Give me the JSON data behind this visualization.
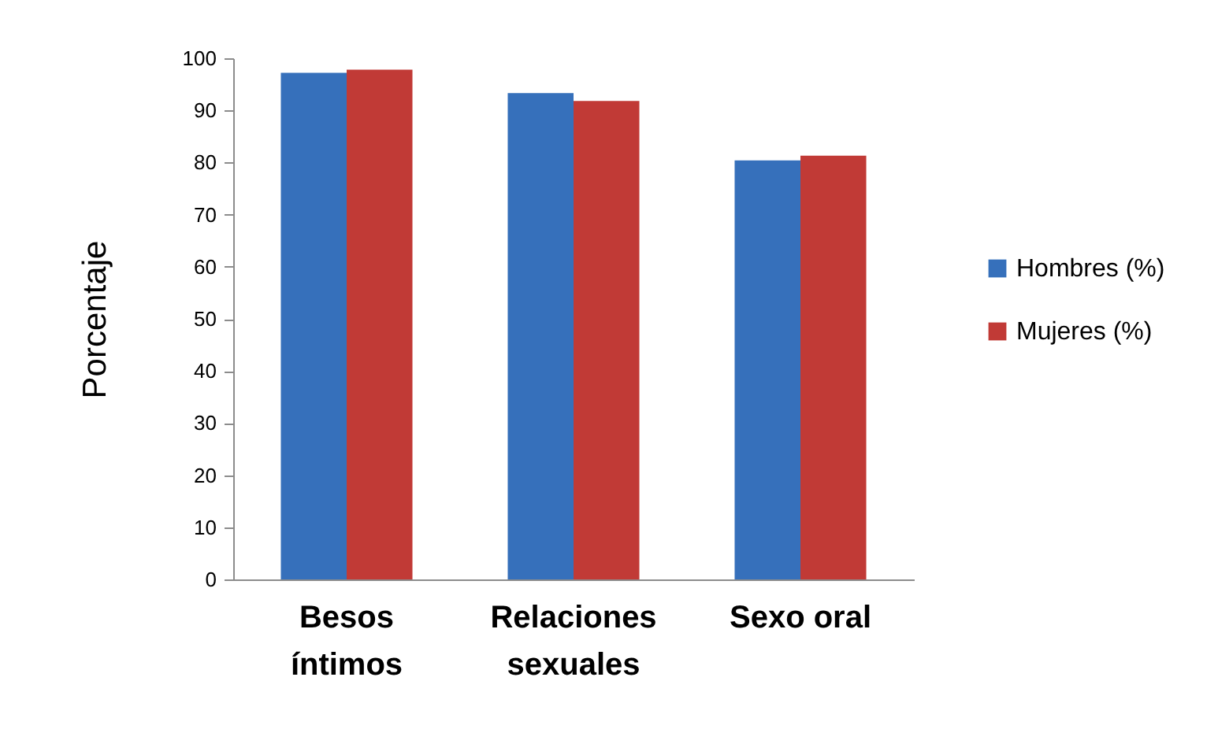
{
  "chart_data": {
    "type": "bar",
    "ylabel": "Porcentaje",
    "categories": [
      "Besos íntimos",
      "Relaciones sexuales",
      "Sexo oral"
    ],
    "series": [
      {
        "name": "Hombres (%)",
        "color": "#3670bb",
        "values": [
          97.2,
          93.3,
          80.4
        ]
      },
      {
        "name": "Mujeres (%)",
        "color": "#c13a36",
        "values": [
          97.8,
          91.8,
          81.3
        ]
      }
    ],
    "ylim": [
      0,
      100
    ],
    "yticks": [
      0,
      10,
      20,
      30,
      40,
      50,
      60,
      70,
      80,
      90,
      100
    ],
    "grid": false,
    "legend": "right"
  }
}
